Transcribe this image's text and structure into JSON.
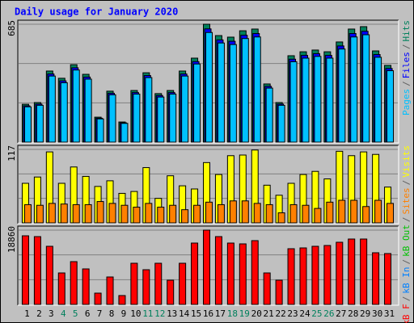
{
  "title": "Daily usage for January 2020",
  "legend_separator": "/",
  "chart_data": [
    {
      "type": "bar",
      "ylim": [
        0,
        685
      ],
      "yticks": [
        685
      ],
      "series": [
        {
          "name": "Hits",
          "color": "#00805c",
          "values": [
            220,
            230,
            413,
            371,
            450,
            394,
            145,
            296,
            117,
            300,
            403,
            282,
            300,
            413,
            488,
            685,
            619,
            610,
            647,
            657,
            338,
            230,
            502,
            525,
            535,
            525,
            582,
            657,
            671,
            530,
            446
          ]
        },
        {
          "name": "Files",
          "color": "#0000ff",
          "values": [
            211,
            221,
            396,
            356,
            432,
            378,
            139,
            284,
            112,
            288,
            387,
            271,
            288,
            396,
            468,
            658,
            594,
            586,
            621,
            631,
            324,
            221,
            482,
            504,
            514,
            504,
            559,
            631,
            644,
            509,
            428
          ]
        },
        {
          "name": "Pages",
          "color": "#00c0ff",
          "values": [
            205,
            214,
            384,
            345,
            419,
            366,
            135,
            275,
            109,
            279,
            375,
            262,
            279,
            384,
            454,
            637,
            576,
            567,
            602,
            611,
            314,
            214,
            467,
            488,
            498,
            488,
            541,
            611,
            624,
            493,
            415
          ]
        }
      ]
    },
    {
      "type": "bar",
      "ylim": [
        0,
        117
      ],
      "yticks": [
        117
      ],
      "series": [
        {
          "name": "Visits",
          "color": "#ffff00",
          "values": [
            63,
            73,
            113,
            63,
            89,
            74,
            58,
            67,
            47,
            50,
            88,
            39,
            75,
            59,
            54,
            96,
            77,
            107,
            108,
            116,
            60,
            44,
            63,
            77,
            82,
            70,
            114,
            107,
            113,
            109,
            57
          ]
        },
        {
          "name": "Sites",
          "color": "#ff8000",
          "values": [
            29,
            28,
            31,
            30,
            29,
            29,
            34,
            31,
            28,
            25,
            31,
            25,
            28,
            21,
            28,
            33,
            29,
            35,
            35,
            31,
            29,
            16,
            29,
            28,
            23,
            33,
            36,
            36,
            26,
            36,
            31
          ]
        }
      ]
    },
    {
      "type": "bar",
      "ylim": [
        0,
        18860
      ],
      "yticks": [
        18860
      ],
      "categories": [
        "1",
        "2",
        "3",
        "4",
        "5",
        "6",
        "7",
        "8",
        "9",
        "10",
        "11",
        "12",
        "13",
        "14",
        "15",
        "16",
        "17",
        "18",
        "19",
        "20",
        "21",
        "22",
        "23",
        "24",
        "25",
        "26",
        "27",
        "28",
        "29",
        "30",
        "31"
      ],
      "category_colors": [
        "#000000",
        "#000000",
        "#000000",
        "#00805c",
        "#00805c",
        "#000000",
        "#000000",
        "#000000",
        "#000000",
        "#000000",
        "#00805c",
        "#00805c",
        "#000000",
        "#000000",
        "#000000",
        "#000000",
        "#000000",
        "#00805c",
        "#00805c",
        "#000000",
        "#000000",
        "#000000",
        "#000000",
        "#000000",
        "#00805c",
        "#00805c",
        "#000000",
        "#000000",
        "#000000",
        "#000000",
        "#000000"
      ],
      "series": [
        {
          "name": "kB F",
          "color": "#ff0000",
          "values": [
            17425,
            17220,
            14760,
            7995,
            10865,
            9020,
            2870,
            6970,
            2255,
            10455,
            8815,
            10455,
            6150,
            10455,
            15580,
            18860,
            17220,
            15580,
            15375,
            16195,
            7995,
            6150,
            14145,
            14350,
            14760,
            14965,
            15785,
            16605,
            16605,
            13120,
            12915
          ]
        }
      ],
      "legend_extra": [
        {
          "name": "kB In",
          "color": "#0080ff"
        },
        {
          "name": "kB Out",
          "color": "#00c000"
        }
      ]
    }
  ]
}
